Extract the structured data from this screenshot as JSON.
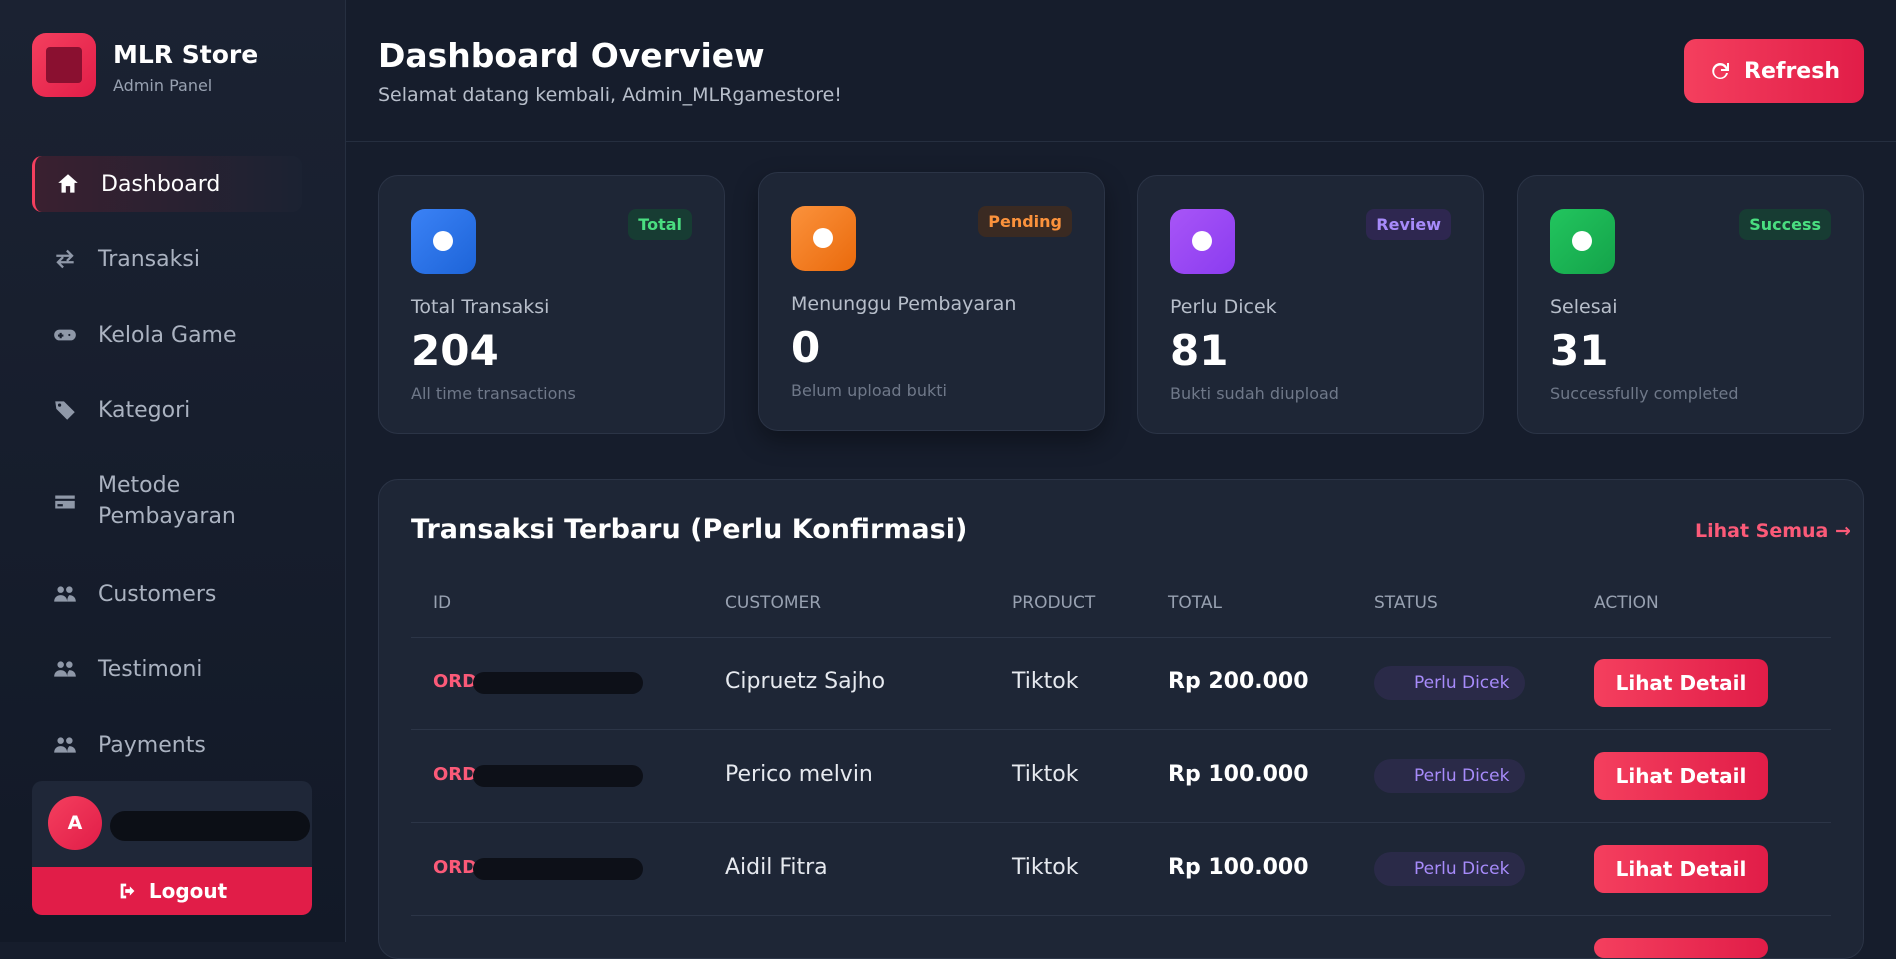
{
  "sidebar": {
    "brand": "MLR Store",
    "subtitle": "Admin Panel",
    "nav": [
      "Dashboard",
      "Transaksi",
      "Kelola Game",
      "Kategori",
      "Metode Pembayaran",
      "Customers",
      "Testimoni",
      "Payments"
    ],
    "user_initial": "A",
    "logout": "Logout"
  },
  "header": {
    "title": "Dashboard Overview",
    "subtitle": "Selamat datang kembali, Admin_MLRgamestore!",
    "refresh": "Refresh"
  },
  "stats": [
    {
      "badge": "Total",
      "label": "Total Transaksi",
      "value": 204,
      "note": "All time transactions"
    },
    {
      "badge": "Pending",
      "label": "Menunggu Pembayaran",
      "value": 0,
      "note": "Belum upload bukti"
    },
    {
      "badge": "Review",
      "label": "Perlu Dicek",
      "value": 81,
      "note": "Bukti sudah diupload"
    },
    {
      "badge": "Success",
      "label": "Selesai",
      "value": 31,
      "note": "Successfully completed"
    }
  ],
  "table": {
    "title": "Transaksi Terbaru (Perlu Konfirmasi)",
    "link": "Lihat Semua",
    "columns": [
      "ID",
      "CUSTOMER",
      "PRODUCT",
      "TOTAL",
      "STATUS",
      "ACTION"
    ],
    "rows": [
      [
        "ORD",
        "Cipruetz Sajho",
        "Tiktok",
        "Rp 200.000",
        "Perlu Dicek",
        "Lihat Detail"
      ],
      [
        "ORD",
        "Perico melvin",
        "Tiktok",
        "Rp 100.000",
        "Perlu Dicek",
        "Lihat Detail"
      ],
      [
        "ORD-",
        "Aidil Fitra",
        "Tiktok",
        "Rp 100.000",
        "Perlu Dicek",
        "Lihat Detail"
      ]
    ]
  }
}
